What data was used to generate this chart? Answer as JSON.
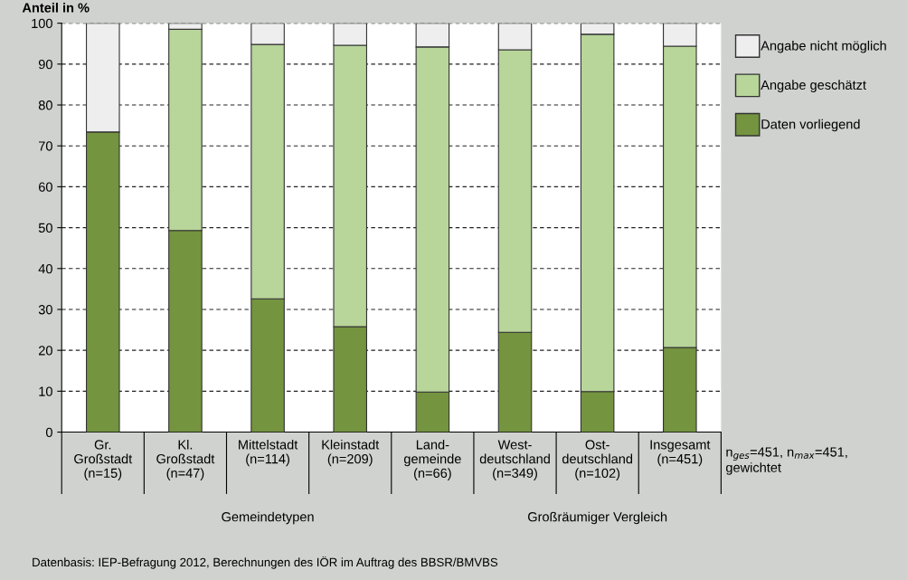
{
  "chart_data": {
    "type": "bar",
    "stacked": true,
    "ylabel": "Anteil in %",
    "categories": [
      "Gr.\nGroßstadt\n(n=15)",
      "Kl.\nGroßstadt\n(n=47)",
      "Mittelstadt\n(n=114)",
      "Kleinstadt\n(n=209)",
      "Land-\ngemeinde\n(n=66)",
      "West-\ndeutschland\n(n=349)",
      "Ost-\ndeutschland\n(n=102)",
      "Insgesamt\n(n=451)"
    ],
    "series": [
      {
        "name": "Daten vorliegend",
        "color": "#74943f",
        "values": [
          73.4,
          49.3,
          32.6,
          25.8,
          9.8,
          24.4,
          9.9,
          20.7
        ]
      },
      {
        "name": "Angabe geschätzt",
        "color": "#b8d59a",
        "values": [
          0,
          49.2,
          62.2,
          68.8,
          84.4,
          69.1,
          87.4,
          73.7
        ]
      },
      {
        "name": "Angabe nicht möglich",
        "color": "#eeeeee",
        "values": [
          26.6,
          1.5,
          5.2,
          5.4,
          5.8,
          6.5,
          2.7,
          5.6
        ]
      }
    ],
    "ylim": [
      0,
      100
    ],
    "yticks": [
      0,
      10,
      20,
      30,
      40,
      50,
      60,
      70,
      80,
      90,
      100
    ],
    "grid": "y",
    "legend": "right",
    "annotations": [
      "Gemeindetypen",
      "Großräumiger Vergleich",
      "n$_{ges}$=451, n$_{max}$=451, gewichtet",
      "Datenbasis: IEP-Befragung 2012, Berechnungen des IÖR im Auftrag des BBSR/BMVBS"
    ]
  }
}
